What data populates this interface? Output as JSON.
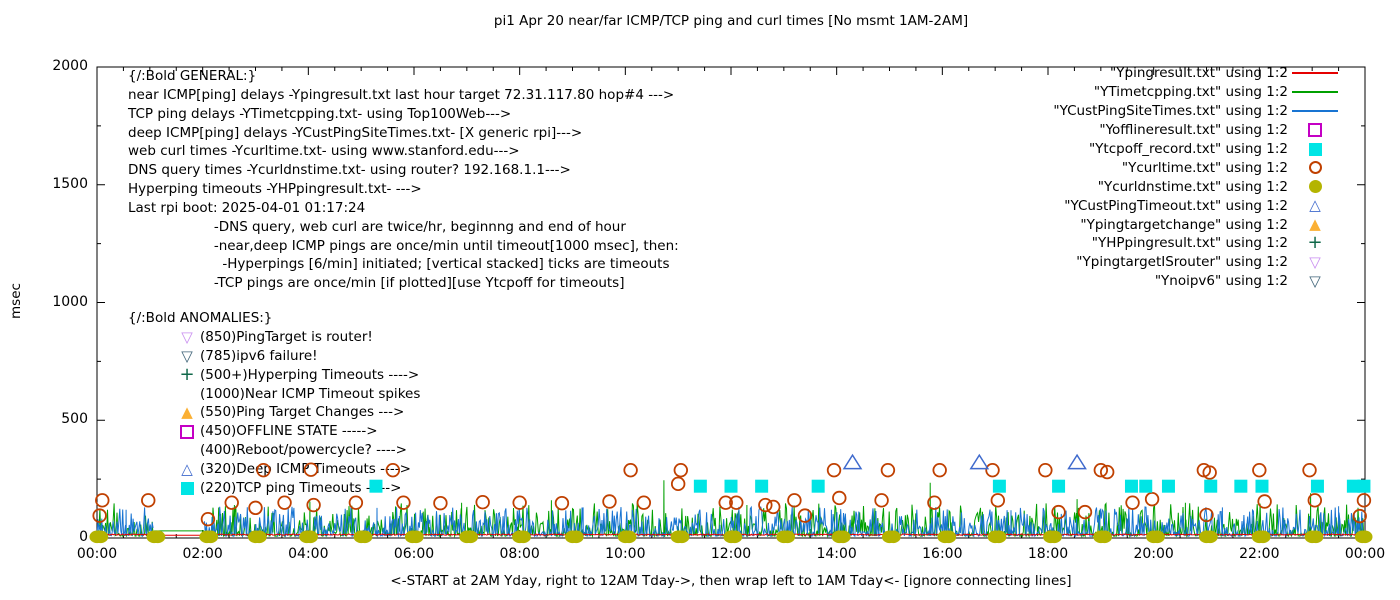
{
  "title": "pi1 Apr 20  near/far ICMP/TCP ping and curl times [No msmt 1AM-2AM]",
  "chart_data": {
    "type": "line+scatter time series (gnuplot)",
    "xlabel": "<-START at 2AM Yday, right to 12AM Tday->, then wrap left to 1AM Tday<- [ignore connecting lines]",
    "ylabel": "msec",
    "xlim_hours": [
      0,
      24
    ],
    "ylim": [
      0,
      2000
    ],
    "x_tick_labels": [
      "00:00",
      "02:00",
      "04:00",
      "06:00",
      "08:00",
      "10:00",
      "12:00",
      "14:00",
      "16:00",
      "18:00",
      "20:00",
      "22:00",
      "00:00"
    ],
    "y_tick_labels": [
      "0",
      "500",
      "1000",
      "1500",
      "2000"
    ],
    "y_tick_values": [
      0,
      500,
      1000,
      1500,
      2000
    ],
    "grid": false,
    "legend_position": "top-right-inside",
    "no_measurement_gap_hours": [
      1.08,
      2.02
    ],
    "legend": [
      {
        "label": "\"Ypingresult.txt\" using 1:2",
        "marker": "line",
        "color": "#e50000"
      },
      {
        "label": "\"YTimetcpping.txt\" using 1:2",
        "marker": "line",
        "color": "#00a000"
      },
      {
        "label": "\"YCustPingSiteTimes.txt\" using 1:2",
        "marker": "line",
        "color": "#1874d2"
      },
      {
        "label": "\"Yofflineresult.txt\" using 1:2",
        "marker": "square-open",
        "color": "#c400c4"
      },
      {
        "label": "\"Ytcpoff_record.txt\" using 1:2",
        "marker": "square-filled",
        "color": "#00e5e5"
      },
      {
        "label": "\"Ycurltime.txt\" using 1:2",
        "marker": "circle-open",
        "color": "#c04000"
      },
      {
        "label": "\"Ycurldnstime.txt\" using 1:2",
        "marker": "circle-filled",
        "color": "#b4b400"
      },
      {
        "label": "\"YCustPingTimeout.txt\" using 1:2",
        "marker": "triangle-up-open",
        "color": "#3f6acd"
      },
      {
        "label": "\"Ypingtargetchange\" using 1:2",
        "marker": "triangle-up-filled",
        "color": "#fbb034"
      },
      {
        "label": "\"YHPpingresult.txt\" using 1:2",
        "marker": "plus",
        "color": "#10684a"
      },
      {
        "label": "\"YpingtargetISrouter\" using 1:2",
        "marker": "triangle-down-open",
        "color": "#c98ef0"
      },
      {
        "label": "\"Ynoipv6\" using 1:2",
        "marker": "triangle-down-open",
        "color": "#3f6378"
      }
    ],
    "series": {
      "near_icmp_ping": {
        "file": "Ypingresult.txt",
        "style": "line",
        "color": "#e50000",
        "behavior": "flat ~12-18 msec all day"
      },
      "tcp_ping": {
        "file": "YTimetcpping.txt",
        "style": "noisy line",
        "color": "#00a000",
        "range_msec": [
          8,
          150
        ],
        "spikes_h_v": [
          [
            2.6,
            140
          ],
          [
            4.03,
            155
          ],
          [
            6.9,
            150
          ],
          [
            8.6,
            160
          ],
          [
            10.73,
            245
          ],
          [
            12.3,
            140
          ],
          [
            15.77,
            235
          ],
          [
            18.55,
            165
          ],
          [
            20.6,
            150
          ],
          [
            22.97,
            190
          ]
        ]
      },
      "deep_icmp_ping": {
        "file": "YCustPingSiteTimes.txt",
        "style": "noisy line",
        "color": "#1874d2",
        "range_msec": [
          8,
          135
        ],
        "spikes_h_v": [
          [
            0.55,
            120
          ],
          [
            5.3,
            128
          ],
          [
            9.2,
            130
          ],
          [
            13.9,
            120
          ],
          [
            17.3,
            118
          ],
          [
            21.3,
            130
          ],
          [
            23.5,
            135
          ]
        ]
      },
      "web_curl": {
        "file": "Ycurltime.txt",
        "marker": "circle-open",
        "color": "#c04000",
        "points_h_v": [
          [
            0.05,
            95
          ],
          [
            0.1,
            160
          ],
          [
            0.97,
            160
          ],
          [
            2.1,
            80
          ],
          [
            2.55,
            150
          ],
          [
            3.0,
            128
          ],
          [
            3.15,
            288
          ],
          [
            3.55,
            150
          ],
          [
            4.05,
            290
          ],
          [
            4.1,
            140
          ],
          [
            4.9,
            150
          ],
          [
            5.6,
            288
          ],
          [
            5.8,
            150
          ],
          [
            6.5,
            148
          ],
          [
            7.3,
            152
          ],
          [
            8.0,
            150
          ],
          [
            8.8,
            148
          ],
          [
            9.7,
            155
          ],
          [
            10.1,
            288
          ],
          [
            10.35,
            150
          ],
          [
            11.0,
            230
          ],
          [
            11.05,
            288
          ],
          [
            11.9,
            150
          ],
          [
            12.1,
            150
          ],
          [
            12.65,
            140
          ],
          [
            12.8,
            132
          ],
          [
            13.2,
            160
          ],
          [
            13.4,
            95
          ],
          [
            13.95,
            288
          ],
          [
            14.05,
            170
          ],
          [
            14.85,
            160
          ],
          [
            14.97,
            288
          ],
          [
            15.85,
            150
          ],
          [
            15.95,
            288
          ],
          [
            16.95,
            288
          ],
          [
            17.05,
            160
          ],
          [
            17.95,
            288
          ],
          [
            18.2,
            110
          ],
          [
            18.7,
            110
          ],
          [
            19.0,
            288
          ],
          [
            19.12,
            280
          ],
          [
            19.6,
            150
          ],
          [
            19.97,
            165
          ],
          [
            20.95,
            288
          ],
          [
            21.0,
            98
          ],
          [
            21.06,
            278
          ],
          [
            22.0,
            288
          ],
          [
            22.1,
            155
          ],
          [
            22.95,
            288
          ],
          [
            23.05,
            160
          ],
          [
            23.9,
            93
          ],
          [
            23.98,
            160
          ]
        ]
      },
      "dns_query": {
        "file": "Ycurldnstime.txt",
        "marker": "circle-filled",
        "color": "#b4b400",
        "value_msec": 5,
        "hours": [
          0,
          0.07,
          1.08,
          1.15,
          2.08,
          2.15,
          3.0,
          3.07,
          3.97,
          4.04,
          5.0,
          5.07,
          5.97,
          6.04,
          7.0,
          7.07,
          8.0,
          8.07,
          9.0,
          9.07,
          10.0,
          10.07,
          11.0,
          11.07,
          12.0,
          12.07,
          13.0,
          13.07,
          14.05,
          14.12,
          15.0,
          15.07,
          16.05,
          16.12,
          17.0,
          17.07,
          18.05,
          18.12,
          19.0,
          19.07,
          20.0,
          20.07,
          21.0,
          21.07,
          22.0,
          22.07,
          23.0,
          23.07,
          23.95,
          24.0
        ]
      },
      "tcp_ping_timeouts": {
        "file": "Ytcpoff_record.txt",
        "marker": "square-filled",
        "color": "#00e5e5",
        "value_msec": 220,
        "hours": [
          5.28,
          11.42,
          12.0,
          12.58,
          13.65,
          17.08,
          18.2,
          19.58,
          19.85,
          20.28,
          21.08,
          21.65,
          22.05,
          23.1,
          23.78,
          23.98
        ]
      },
      "deep_icmp_timeouts": {
        "file": "YCustPingTimeout.txt",
        "marker": "triangle-up-open",
        "color": "#3f6acd",
        "value_msec": 320,
        "hours": [
          14.3,
          16.7,
          18.55
        ]
      }
    },
    "render": {
      "seed_green": 12,
      "seed_blue": 99,
      "seed_red": 5,
      "step_hours": 0.018,
      "green": {
        "floor": 8,
        "amp": 140,
        "pow": 3
      },
      "blue": {
        "floor": 8,
        "amp": 125,
        "pow": 2.6
      },
      "red": {
        "base": 12,
        "jitter": 5
      },
      "gap_green_level": 30
    },
    "annotations": {
      "general": {
        "lines": [
          "{/:Bold GENERAL:}",
          "near ICMP[ping] delays -Ypingresult.txt last hour target 72.31.117.80 hop#4 --->",
          "TCP ping delays -YTimetcpping.txt- using Top100Web--->",
          "deep ICMP[ping] delays -YCustPingSiteTimes.txt- [X generic rpi]--->",
          "web curl times -Ycurltime.txt- using www.stanford.edu--->",
          "DNS query times -Ycurldnstime.txt- using router? 192.168.1.1--->",
          "Hyperping timeouts -YHPpingresult.txt- --->",
          "Last rpi boot: 2025-04-01 01:17:24",
          "                    -DNS query, web curl are twice/hr, beginnng and end of hour",
          "                    -near,deep ICMP pings are once/min until timeout[1000 msec], then:",
          "                      -Hyperpings [6/min] initiated; [vertical stacked] ticks are timeouts",
          "                    -TCP pings are once/min [if plotted][use Ytcpoff for timeouts]"
        ]
      },
      "anomalies": {
        "lines": [
          {
            "text": "{/:Bold ANOMALIES:}",
            "marker": null,
            "color": null,
            "header": true
          },
          {
            "text": "(850)PingTarget is router!",
            "marker": "triangle-down-open",
            "color": "#c98ef0"
          },
          {
            "text": "(785)ipv6 failure!",
            "marker": "triangle-down-open",
            "color": "#3f6378"
          },
          {
            "text": "(500+)Hyperping Timeouts ---->",
            "marker": "plus",
            "color": "#10684a"
          },
          {
            "text": "(1000)Near ICMP Timeout spikes",
            "marker": null,
            "color": null
          },
          {
            "text": "(550)Ping Target Changes --->",
            "marker": "triangle-up-filled",
            "color": "#fbb034"
          },
          {
            "text": "(450)OFFLINE STATE ----->",
            "marker": "square-open",
            "color": "#c400c4"
          },
          {
            "text": "(400)Reboot/powercycle? ---->",
            "marker": null,
            "color": null
          },
          {
            "text": "(320)Deep ICMP Timeouts ---->",
            "marker": "triangle-up-open",
            "color": "#3f6acd"
          },
          {
            "text": "(220)TCP ping Timeouts ----->",
            "marker": "square-filled",
            "color": "#00e5e5"
          }
        ]
      }
    }
  }
}
